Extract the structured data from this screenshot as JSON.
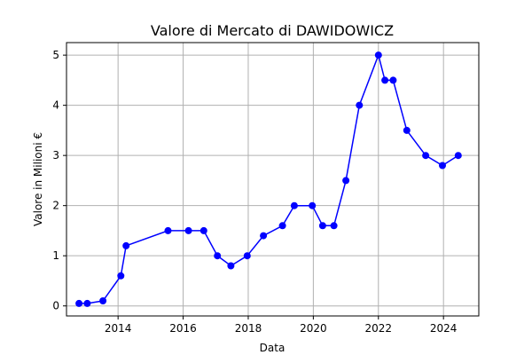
{
  "chart_data": {
    "type": "line",
    "title": "Valore di Mercato di DAWIDOWICZ",
    "xlabel": "Data",
    "ylabel": "Valore in Milioni €",
    "xlim": [
      "2012-06-01",
      "2025-02-01"
    ],
    "ylim": [
      -0.2,
      5.25
    ],
    "x_ticks": [
      "2014",
      "2016",
      "2018",
      "2020",
      "2022",
      "2024"
    ],
    "y_ticks": [
      "0",
      "1",
      "2",
      "3",
      "4",
      "5"
    ],
    "grid": true,
    "series": [
      {
        "color": "#0000ff",
        "marker": "circle",
        "points": [
          {
            "x": "2012-10-20",
            "y": 0.05
          },
          {
            "x": "2013-01-20",
            "y": 0.05
          },
          {
            "x": "2013-07-15",
            "y": 0.1
          },
          {
            "x": "2014-02-01",
            "y": 0.6
          },
          {
            "x": "2014-04-01",
            "y": 1.2
          },
          {
            "x": "2015-07-15",
            "y": 1.5
          },
          {
            "x": "2016-03-01",
            "y": 1.5
          },
          {
            "x": "2016-08-20",
            "y": 1.5
          },
          {
            "x": "2017-01-20",
            "y": 1.0
          },
          {
            "x": "2017-06-20",
            "y": 0.8
          },
          {
            "x": "2017-12-20",
            "y": 1.0
          },
          {
            "x": "2018-06-20",
            "y": 1.4
          },
          {
            "x": "2019-01-20",
            "y": 1.6
          },
          {
            "x": "2019-06-01",
            "y": 2.0
          },
          {
            "x": "2019-12-20",
            "y": 2.0
          },
          {
            "x": "2020-04-15",
            "y": 1.6
          },
          {
            "x": "2020-08-20",
            "y": 1.6
          },
          {
            "x": "2021-01-01",
            "y": 2.5
          },
          {
            "x": "2021-06-01",
            "y": 4.0
          },
          {
            "x": "2022-01-01",
            "y": 5.0
          },
          {
            "x": "2022-03-15",
            "y": 4.5
          },
          {
            "x": "2022-06-15",
            "y": 4.5
          },
          {
            "x": "2022-11-15",
            "y": 3.5
          },
          {
            "x": "2023-06-15",
            "y": 3.0
          },
          {
            "x": "2023-12-20",
            "y": 2.8
          },
          {
            "x": "2024-06-15",
            "y": 3.0
          }
        ]
      }
    ]
  }
}
